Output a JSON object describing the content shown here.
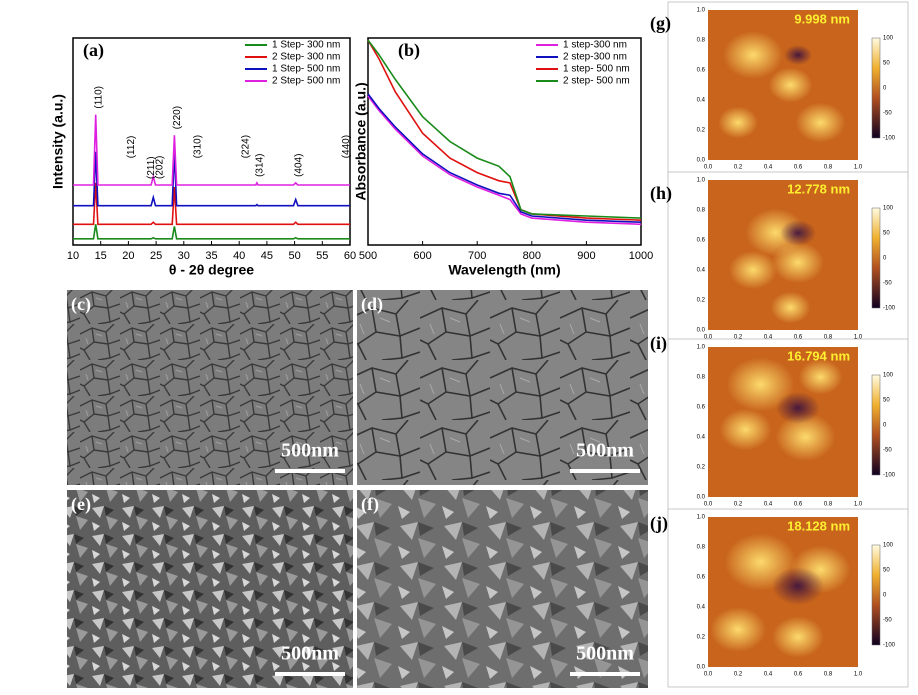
{
  "chart_data": [
    {
      "type": "line",
      "panel_label": "(a)",
      "xlabel": "θ - 2θ degree",
      "ylabel": "Intensity (a.u.)",
      "x": [
        10,
        13.7,
        14.1,
        14.5,
        24.1,
        24.5,
        24.9,
        27.9,
        28.3,
        28.7,
        43,
        43.2,
        43.4,
        49.8,
        50.2,
        50.6,
        60
      ],
      "xlim": [
        10,
        60
      ],
      "xticks": [
        10,
        15,
        20,
        25,
        30,
        35,
        40,
        45,
        50,
        55,
        60
      ],
      "ylim": [
        0,
        100
      ],
      "legend": "upper right",
      "series": [
        {
          "name": "1 Step- 300 nm",
          "color": "#1a8a1a",
          "values": [
            3,
            3,
            10,
            3,
            3,
            3.5,
            3,
            3,
            9,
            3,
            3,
            3,
            3,
            3,
            3.5,
            3,
            3
          ]
        },
        {
          "name": "2 Step- 300 nm",
          "color": "#e01010",
          "values": [
            10,
            10,
            30,
            10,
            10,
            11,
            10,
            10,
            28,
            10,
            10,
            10,
            10,
            10,
            11,
            10,
            10
          ]
        },
        {
          "name": "1 Step- 500 nm",
          "color": "#1010c0",
          "values": [
            19,
            19,
            45,
            19,
            19,
            23,
            19,
            19,
            45,
            19,
            19,
            19.5,
            19,
            19,
            22,
            19,
            19
          ]
        },
        {
          "name": "2 Step- 500 nm",
          "color": "#e020e0",
          "values": [
            29,
            29,
            63,
            29,
            29,
            33,
            29,
            29,
            53,
            29,
            29,
            30,
            29,
            29,
            30,
            29,
            29
          ]
        }
      ],
      "annotations": [
        {
          "text": "(110)",
          "x": 14.1
        },
        {
          "text": "(112)",
          "x": 20
        },
        {
          "text": "(211)",
          "x": 23.6
        },
        {
          "text": "(202)",
          "x": 25.1
        },
        {
          "text": "(220)",
          "x": 28.3
        },
        {
          "text": "(310)",
          "x": 32
        },
        {
          "text": "(224)",
          "x": 40.7
        },
        {
          "text": "(314)",
          "x": 43.2
        },
        {
          "text": "(404)",
          "x": 50.2
        },
        {
          "text": "(440)",
          "x": 58.8
        }
      ]
    },
    {
      "type": "line",
      "panel_label": "(b)",
      "xlabel": "Wavelength (nm)",
      "ylabel": "Absorbance (a.u.)",
      "x": [
        500,
        520,
        550,
        600,
        650,
        700,
        740,
        760,
        780,
        800,
        900,
        1000
      ],
      "xlim": [
        500,
        1000
      ],
      "xticks": [
        500,
        600,
        700,
        800,
        900,
        1000
      ],
      "ylim": [
        0,
        100
      ],
      "legend": "upper right",
      "series": [
        {
          "name": "1 step-300 nm",
          "color": "#e020e0",
          "values": [
            72,
            65,
            56,
            43,
            34,
            28,
            24,
            22,
            15,
            13,
            11,
            10
          ]
        },
        {
          "name": "2 step-300 nm",
          "color": "#1010c0",
          "values": [
            73,
            66,
            57,
            44,
            35,
            29,
            25,
            24,
            16,
            14,
            12,
            11
          ]
        },
        {
          "name": "1 step- 500 nm",
          "color": "#e01010",
          "values": [
            99,
            90,
            74,
            54,
            42,
            35,
            31,
            30,
            17,
            15,
            13,
            12
          ]
        },
        {
          "name": "2 step- 500 nm",
          "color": "#1a8a1a",
          "values": [
            99,
            92,
            80,
            62,
            50,
            42,
            38,
            33,
            17,
            15,
            14,
            13
          ]
        }
      ]
    }
  ],
  "sem_panels": [
    {
      "panel_label": "(c)",
      "scale_bar": "500nm"
    },
    {
      "panel_label": "(d)",
      "scale_bar": "500nm"
    },
    {
      "panel_label": "(e)",
      "scale_bar": "500nm"
    },
    {
      "panel_label": "(f)",
      "scale_bar": "500nm"
    }
  ],
  "afm_panels": [
    {
      "panel_label": "(g)",
      "roughness": "9.998 nm"
    },
    {
      "panel_label": "(h)",
      "roughness": "12.778 nm"
    },
    {
      "panel_label": "(i)",
      "roughness": "16.794 nm"
    },
    {
      "panel_label": "(j)",
      "roughness": "18.128 nm"
    }
  ],
  "afm_axis_ticks": [
    "0.0",
    "0.2",
    "0.4",
    "0.6",
    "0.8",
    "1.0"
  ],
  "afm_colorbar_ticks": [
    "100",
    "50",
    "0",
    "-50",
    "-100"
  ]
}
